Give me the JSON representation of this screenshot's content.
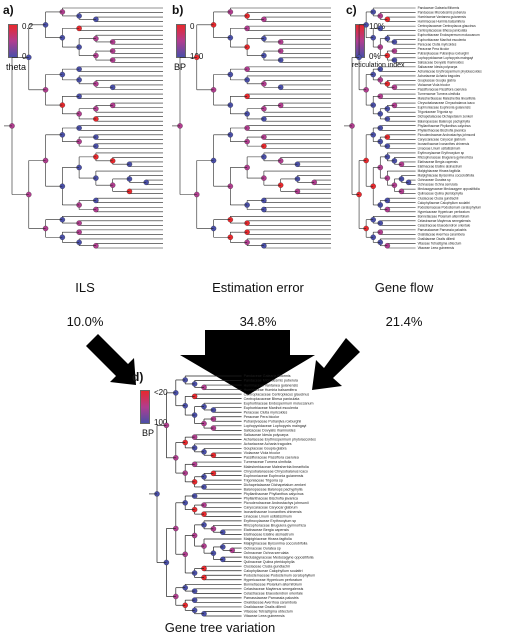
{
  "panels": {
    "a": {
      "label": "a)",
      "legend_title": "theta",
      "legend_max": "0.2",
      "legend_min": "0",
      "caption": "ILS",
      "percentage": "10.0%"
    },
    "b": {
      "label": "b)",
      "legend_title": "BP",
      "legend_max": "0",
      "legend_min": "100",
      "caption": "Estimation error",
      "percentage": "34.8%"
    },
    "c": {
      "label": "c)",
      "legend_title": "reticulation index",
      "legend_max": "10%",
      "legend_min": "0%",
      "caption": "Gene flow",
      "percentage": "21.4%"
    },
    "d": {
      "label": "d)",
      "legend_title": "BP",
      "legend_max": "<20",
      "legend_min": "100",
      "caption": "Gene tree variation"
    }
  },
  "colors": {
    "high": "#e8282d",
    "mid": "#b13d8f",
    "low": "#4a4fa8",
    "arrow": "#000000",
    "line": "#222222"
  },
  "taxa": [
    "Pandaceae Galearia filiformis",
    "Pandaceae Microdesmis puberula",
    "Humiriaceae Vantanea guianensis",
    "Humiriaceae Humiria balsamifera",
    "Centroplacaceae Centroplacus glaucinus",
    "Centroplacaceae Bhesa paniculata",
    "Euphorbiaceae Endospermum moluccanum",
    "Euphorbiaceae Manihot esculenta",
    "Peraceae Clutia myricoides",
    "Peraceae Pera bicolor",
    "Putranjivaceae Putranjiva roxburghii",
    "Lophopyxidaceae Lophopyxis maingayi",
    "Salicaceae Dovyalis rhamnoides",
    "Salicaceae Idesia polycarpa",
    "Achariaceae Erythrospermum phytolaccoides",
    "Achariaceae Acharia tragodes",
    "Goupiaceae Goupia glabra",
    "Violaceae Viola tricolor",
    "Passifloraceae Passiflora caerulea",
    "Turneraceae Turnera ulmifolia",
    "Malesherbiaceae Malesherbia linearifolia",
    "Chrysobalanaceae Chrysobalanus icaco",
    "Euphroniaceae Euphronia guianensis",
    "Trigoniaceae Trigonia sp",
    "Dichapetalaceae Dichapetalum zenkeri",
    "Balanopaceae Balanops pachyphylla",
    "Phyllanthaceae Phyllanthus calycinus",
    "Phyllanthaceae Bischofia javanica",
    "Picrodendraceae Androstachys johnsonii",
    "Caryocaraceae Caryocar glabrum",
    "Ixonanthaceae Ixonanthes chinensis",
    "Linaceae Linum usitatissimum",
    "Erythroxylaceae Erythroxylum sp",
    "Rhizophoraceae Bruguiera gymnorhiza",
    "Elatinaceae Bergia capensis",
    "Elatinaceae Elatine alsinastrum",
    "Malpighiaceae Hiraea fagifolia",
    "Malpighiaceae Byrsonima coccolobifolia",
    "Ochnaceae Ouratea sp",
    "Ochnaceae Ochna serrulata",
    "Medusagynaceae Medusagyne oppositifolia",
    "Quiinaceae Quiina pteridophylla",
    "Clusiaceae Clusia gundlachii",
    "Calophyllaceae Calophyllum soulattri",
    "Podostemaceae Podostemum ceratophyllum",
    "Hypericaceae Hypericum perforatum",
    "Bonnetiaceae Ploiarium alternifolium",
    "Celastraceae Maytenus senegalensis",
    "Celastraceae Elaeodendron orientale",
    "Parnassiaceae Parnassia palustris",
    "Oxalidaceae Averrhoa carambola",
    "Oxalidaceae Oxalis dillenii",
    "Vitaceae Tetrastigma obtectum",
    "Vitaceae Leea guineensis"
  ]
}
